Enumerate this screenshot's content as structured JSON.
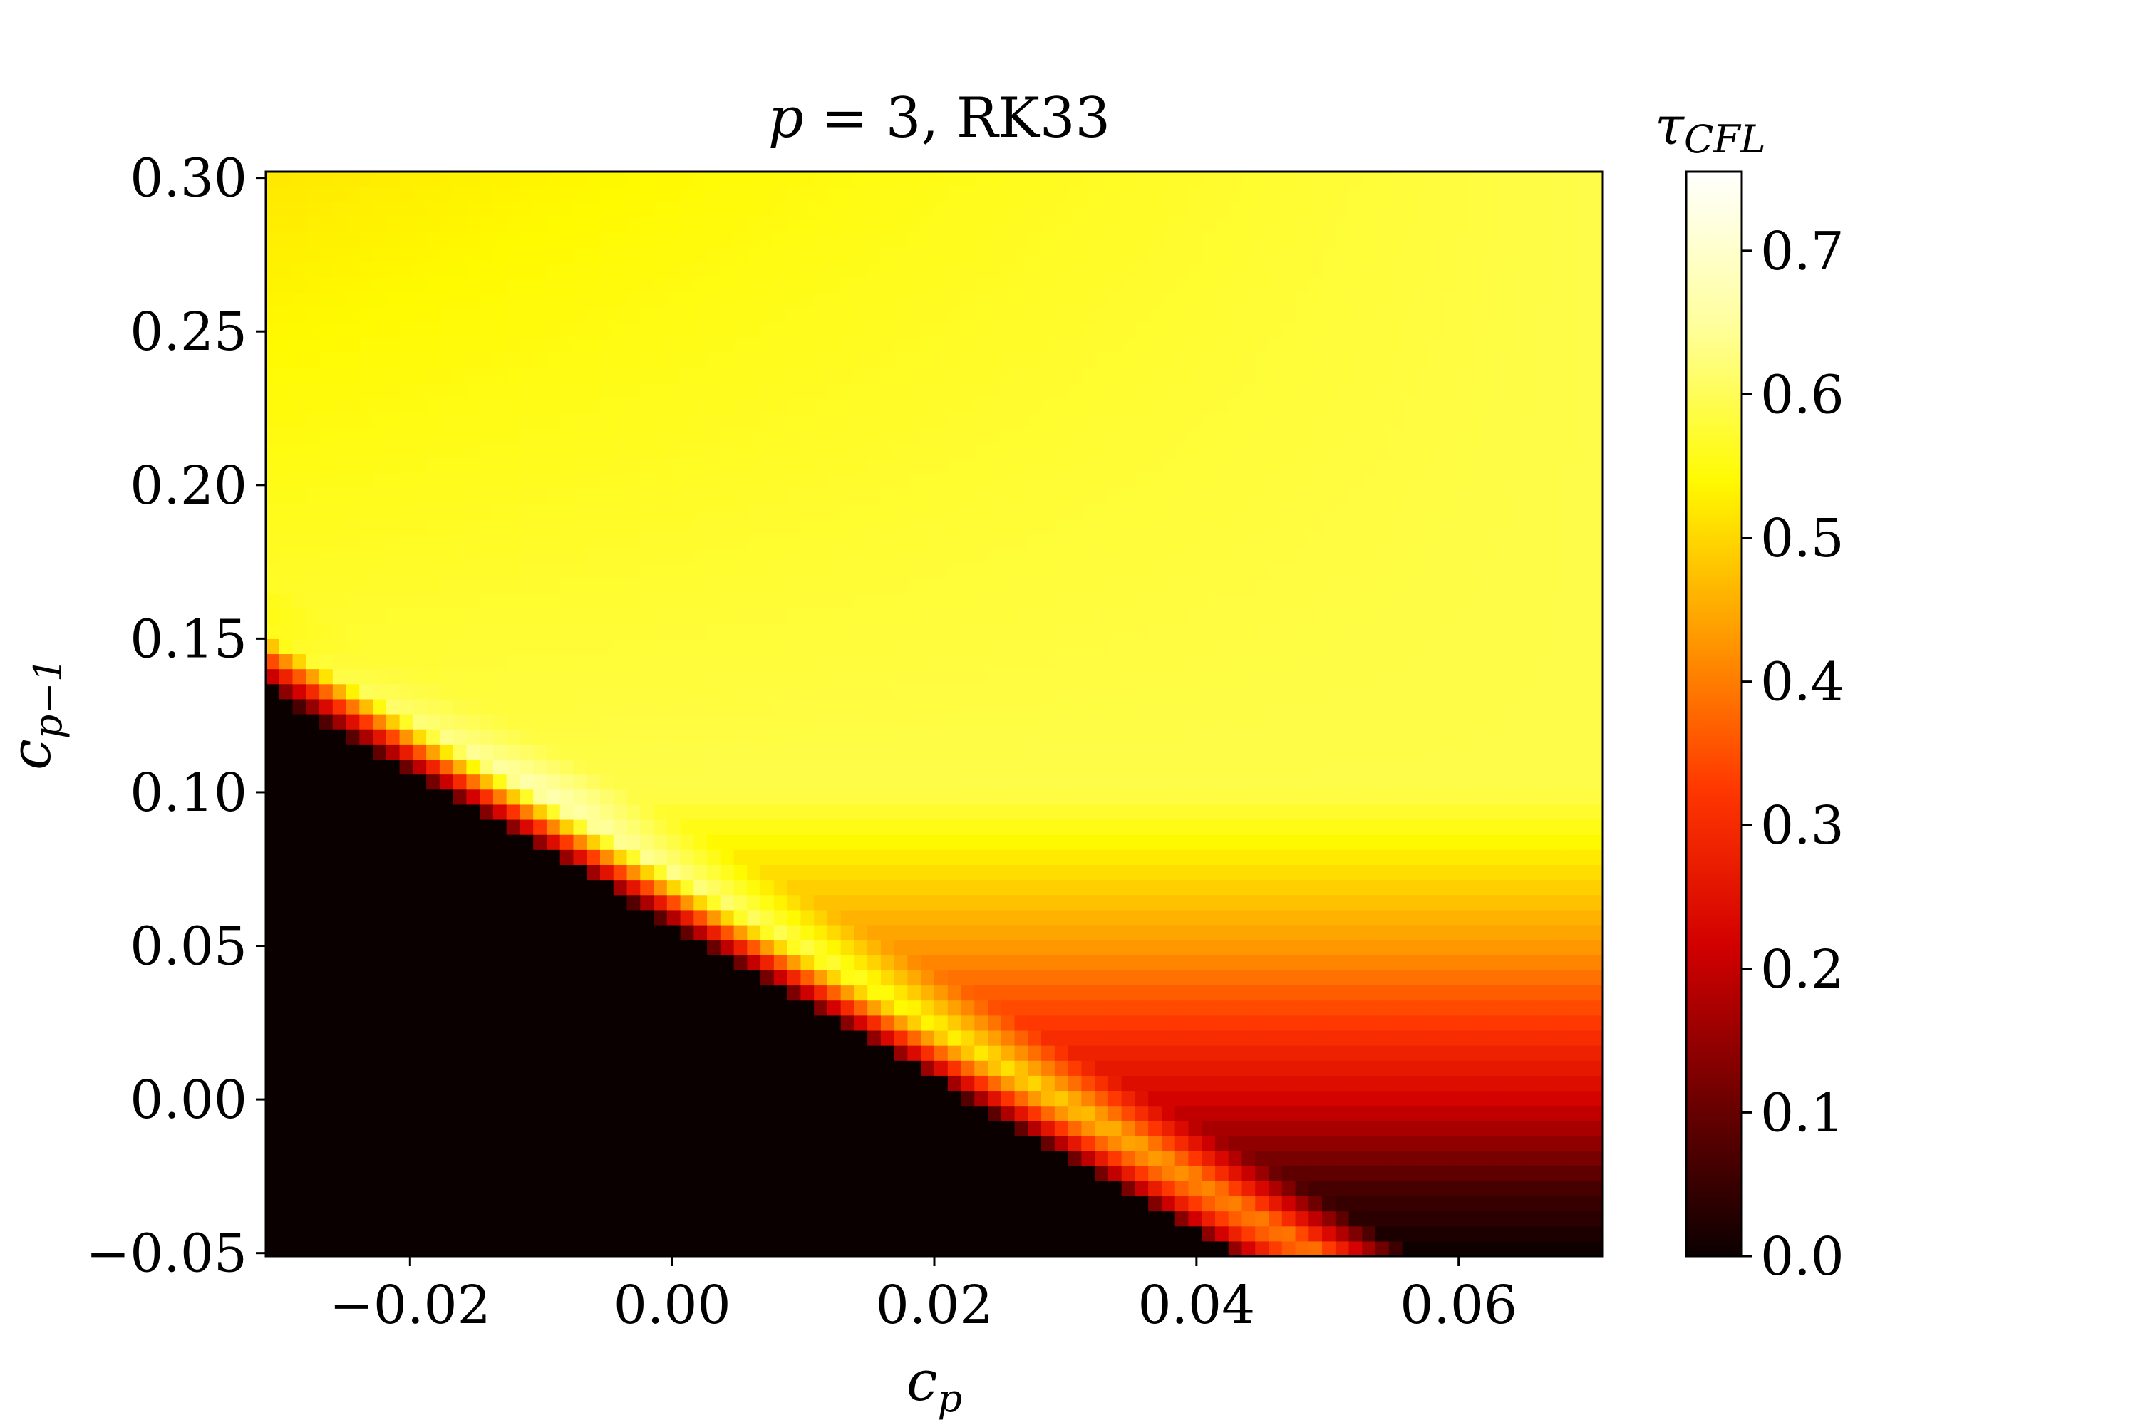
{
  "chart_data": {
    "type": "heatmap",
    "title": {
      "math": "p",
      "eq": " = ",
      "rest": "3, RK33"
    },
    "xlabel": {
      "base": "c",
      "sub": "p"
    },
    "ylabel": {
      "base": "c",
      "sub": "p−1"
    },
    "colorbar_label": {
      "base": "τ",
      "sub": "CFL"
    },
    "x_range": [
      -0.031,
      0.071
    ],
    "y_range": [
      -0.051,
      0.302
    ],
    "x_ticks": [
      {
        "value": -0.02,
        "label": "−0.02"
      },
      {
        "value": 0.0,
        "label": "0.00"
      },
      {
        "value": 0.02,
        "label": "0.02"
      },
      {
        "value": 0.04,
        "label": "0.04"
      },
      {
        "value": 0.06,
        "label": "0.06"
      }
    ],
    "y_ticks": [
      {
        "value": -0.05,
        "label": "−0.05"
      },
      {
        "value": 0.0,
        "label": "0.00"
      },
      {
        "value": 0.05,
        "label": "0.05"
      },
      {
        "value": 0.1,
        "label": "0.10"
      },
      {
        "value": 0.15,
        "label": "0.15"
      },
      {
        "value": 0.2,
        "label": "0.20"
      },
      {
        "value": 0.25,
        "label": "0.25"
      },
      {
        "value": 0.3,
        "label": "0.30"
      }
    ],
    "colorbar_range": [
      0.0,
      0.755
    ],
    "colorbar_ticks": [
      {
        "value": 0.0,
        "label": "0.0"
      },
      {
        "value": 0.1,
        "label": "0.1"
      },
      {
        "value": 0.2,
        "label": "0.2"
      },
      {
        "value": 0.3,
        "label": "0.3"
      },
      {
        "value": 0.4,
        "label": "0.4"
      },
      {
        "value": 0.5,
        "label": "0.5"
      },
      {
        "value": 0.6,
        "label": "0.6"
      },
      {
        "value": 0.7,
        "label": "0.7"
      }
    ],
    "colormap": [
      "#0b0000",
      "#6e0000",
      "#d20000",
      "#ff3600",
      "#ff9a00",
      "#fffa00",
      "#ffff9c",
      "#ffffff"
    ],
    "grid": false,
    "grid_resolution": {
      "nx": 100,
      "ny": 72
    },
    "values_description_points": [
      {
        "x": -0.03,
        "y": 0.3,
        "value": 0.52
      },
      {
        "x": 0.07,
        "y": 0.3,
        "value": 0.59
      },
      {
        "x": -0.03,
        "y": 0.2,
        "value": 0.59
      },
      {
        "x": 0.07,
        "y": 0.1,
        "value": 0.59
      },
      {
        "x": -0.012,
        "y": 0.1,
        "value": 0.72
      },
      {
        "x": 0.06,
        "y": 0.05,
        "value": 0.43
      },
      {
        "x": 0.06,
        "y": 0.0,
        "value": 0.22
      },
      {
        "x": 0.06,
        "y": -0.04,
        "value": 0.03
      },
      {
        "x": -0.03,
        "y": 0.0,
        "value": 0.0
      },
      {
        "x": 0.0,
        "y": -0.03,
        "value": 0.0
      }
    ]
  }
}
